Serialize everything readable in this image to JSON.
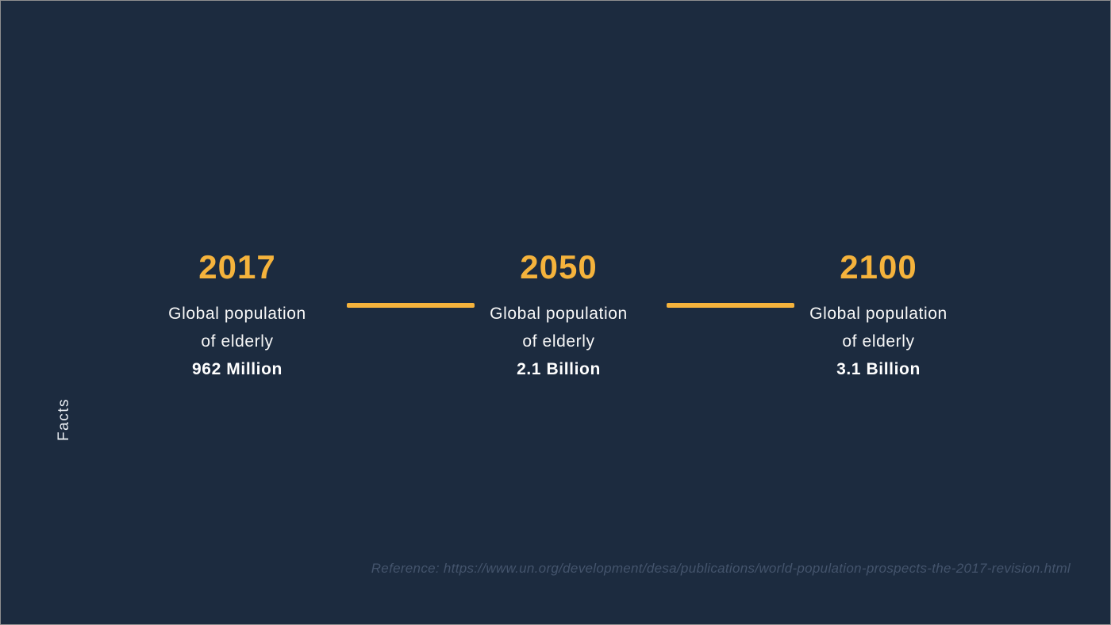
{
  "slide": {
    "background_color": "#1c2b3f",
    "accent_color": "#f5b33c",
    "text_color": "#ffffff",
    "reference_color": "#44546c",
    "side_label": "Facts",
    "facts": [
      {
        "year": "2017",
        "description_line1": "Global population",
        "description_line2": "of elderly",
        "value": "962 Million"
      },
      {
        "year": "2050",
        "description_line1": "Global population",
        "description_line2": "of elderly",
        "value": "2.1 Billion"
      },
      {
        "year": "2100",
        "description_line1": "Global population",
        "description_line2": "of elderly",
        "value": "3.1 Billion"
      }
    ],
    "reference": "Reference: https://www.un.org/development/desa/publications/world-population-prospects-the-2017-revision.html"
  }
}
